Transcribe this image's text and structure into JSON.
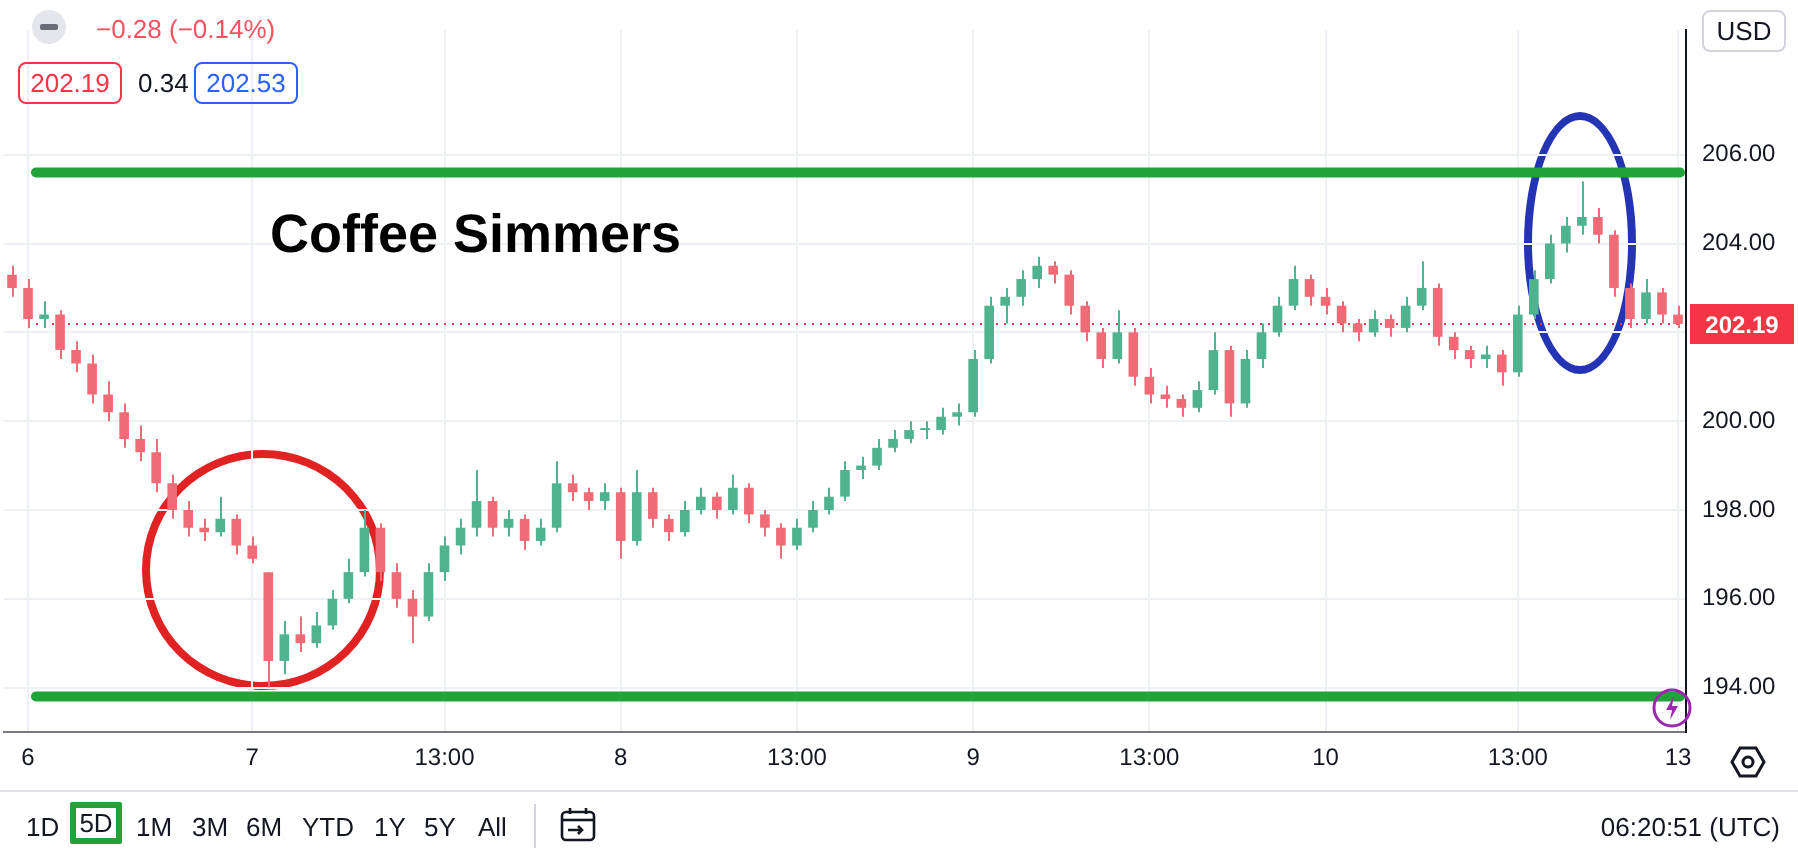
{
  "chart_data": {
    "type": "candlestick",
    "title": "Coffee Simmers",
    "categories": [
      null,
      "6",
      null,
      null,
      null,
      null,
      null,
      null,
      null,
      null,
      null,
      null,
      null,
      null,
      null,
      "7",
      null,
      null,
      null,
      null,
      null,
      null,
      null,
      null,
      null,
      null,
      null,
      "13:00",
      null,
      null,
      null,
      null,
      null,
      null,
      null,
      null,
      null,
      null,
      "8",
      null,
      null,
      null,
      null,
      null,
      null,
      null,
      null,
      null,
      null,
      "13:00",
      null,
      null,
      null,
      null,
      null,
      null,
      null,
      null,
      null,
      null,
      "9",
      null,
      null,
      null,
      null,
      null,
      null,
      null,
      null,
      null,
      null,
      "13:00",
      null,
      null,
      null,
      null,
      null,
      null,
      null,
      null,
      null,
      null,
      "10",
      null,
      null,
      null,
      null,
      null,
      null,
      null,
      null,
      null,
      null,
      null,
      "13:00",
      null,
      null,
      null,
      null,
      null,
      null,
      null,
      null,
      null,
      "13"
    ],
    "ohlc": [
      [
        203.3,
        203.5,
        202.8,
        203.0
      ],
      [
        203.0,
        203.2,
        202.1,
        202.3
      ],
      [
        202.3,
        202.7,
        202.1,
        202.4
      ],
      [
        202.4,
        202.5,
        201.4,
        201.6
      ],
      [
        201.6,
        201.8,
        201.1,
        201.3
      ],
      [
        201.3,
        201.5,
        200.4,
        200.6
      ],
      [
        200.6,
        200.9,
        200.0,
        200.2
      ],
      [
        200.2,
        200.4,
        199.4,
        199.6
      ],
      [
        199.6,
        199.9,
        199.1,
        199.3
      ],
      [
        199.3,
        199.6,
        198.4,
        198.6
      ],
      [
        198.6,
        198.8,
        197.8,
        198.0
      ],
      [
        198.0,
        198.2,
        197.4,
        197.6
      ],
      [
        197.6,
        197.8,
        197.3,
        197.5
      ],
      [
        197.5,
        198.3,
        197.4,
        197.8
      ],
      [
        197.8,
        197.9,
        197.0,
        197.2
      ],
      [
        197.2,
        197.4,
        196.8,
        196.9
      ],
      [
        196.6,
        196.6,
        194.0,
        194.6
      ],
      [
        194.6,
        195.5,
        194.3,
        195.2
      ],
      [
        195.2,
        195.6,
        194.8,
        195.0
      ],
      [
        195.0,
        195.7,
        194.9,
        195.4
      ],
      [
        195.4,
        196.2,
        195.3,
        196.0
      ],
      [
        196.0,
        196.9,
        195.9,
        196.6
      ],
      [
        196.6,
        198.0,
        196.5,
        197.6
      ],
      [
        197.6,
        197.7,
        196.4,
        196.6
      ],
      [
        196.6,
        196.8,
        195.8,
        196.0
      ],
      [
        196.0,
        196.2,
        195.0,
        195.6
      ],
      [
        195.6,
        196.8,
        195.5,
        196.6
      ],
      [
        196.6,
        197.4,
        196.4,
        197.2
      ],
      [
        197.2,
        197.8,
        197.0,
        197.6
      ],
      [
        197.6,
        198.9,
        197.4,
        198.2
      ],
      [
        198.2,
        198.3,
        197.4,
        197.6
      ],
      [
        197.6,
        198.0,
        197.4,
        197.8
      ],
      [
        197.8,
        197.9,
        197.1,
        197.3
      ],
      [
        197.3,
        197.8,
        197.2,
        197.6
      ],
      [
        197.6,
        199.1,
        197.5,
        198.6
      ],
      [
        198.6,
        198.8,
        198.2,
        198.4
      ],
      [
        198.4,
        198.5,
        198.0,
        198.2
      ],
      [
        198.2,
        198.6,
        198.0,
        198.4
      ],
      [
        198.4,
        198.5,
        196.9,
        197.3
      ],
      [
        197.3,
        198.9,
        197.2,
        198.4
      ],
      [
        198.4,
        198.5,
        197.6,
        197.8
      ],
      [
        197.8,
        197.9,
        197.3,
        197.5
      ],
      [
        197.5,
        198.2,
        197.4,
        198.0
      ],
      [
        198.0,
        198.5,
        197.9,
        198.3
      ],
      [
        198.3,
        198.4,
        197.8,
        198.0
      ],
      [
        198.0,
        198.8,
        197.9,
        198.5
      ],
      [
        198.5,
        198.6,
        197.7,
        197.9
      ],
      [
        197.9,
        198.0,
        197.4,
        197.6
      ],
      [
        197.6,
        197.7,
        196.9,
        197.2
      ],
      [
        197.2,
        197.8,
        197.1,
        197.6
      ],
      [
        197.6,
        198.2,
        197.5,
        198.0
      ],
      [
        198.0,
        198.5,
        197.9,
        198.3
      ],
      [
        198.3,
        199.1,
        198.2,
        198.9
      ],
      [
        198.9,
        199.2,
        198.7,
        199.0
      ],
      [
        199.0,
        199.6,
        198.9,
        199.4
      ],
      [
        199.4,
        199.8,
        199.3,
        199.6
      ],
      [
        199.6,
        200.0,
        199.5,
        199.8
      ],
      [
        199.8,
        200.0,
        199.6,
        199.8
      ],
      [
        199.8,
        200.3,
        199.7,
        200.1
      ],
      [
        200.1,
        200.4,
        199.9,
        200.2
      ],
      [
        200.2,
        201.6,
        200.1,
        201.4
      ],
      [
        201.4,
        202.8,
        201.3,
        202.6
      ],
      [
        202.6,
        203.0,
        202.2,
        202.8
      ],
      [
        202.8,
        203.4,
        202.6,
        203.2
      ],
      [
        203.2,
        203.7,
        203.0,
        203.5
      ],
      [
        203.5,
        203.6,
        203.1,
        203.3
      ],
      [
        203.3,
        203.4,
        202.4,
        202.6
      ],
      [
        202.6,
        202.7,
        201.8,
        202.0
      ],
      [
        202.0,
        202.1,
        201.2,
        201.4
      ],
      [
        201.4,
        202.5,
        201.3,
        202.0
      ],
      [
        202.0,
        202.1,
        200.8,
        201.0
      ],
      [
        201.0,
        201.2,
        200.4,
        200.6
      ],
      [
        200.6,
        200.8,
        200.3,
        200.5
      ],
      [
        200.5,
        200.6,
        200.1,
        200.3
      ],
      [
        200.3,
        200.9,
        200.2,
        200.7
      ],
      [
        200.7,
        202.0,
        200.6,
        201.6
      ],
      [
        201.6,
        201.7,
        200.1,
        200.4
      ],
      [
        200.4,
        201.6,
        200.3,
        201.4
      ],
      [
        201.4,
        202.2,
        201.2,
        202.0
      ],
      [
        202.0,
        202.8,
        201.9,
        202.6
      ],
      [
        202.6,
        203.5,
        202.5,
        203.2
      ],
      [
        203.2,
        203.3,
        202.6,
        202.8
      ],
      [
        202.8,
        203.0,
        202.4,
        202.6
      ],
      [
        202.6,
        202.7,
        202.0,
        202.2
      ],
      [
        202.2,
        202.3,
        201.8,
        202.0
      ],
      [
        202.0,
        202.5,
        201.9,
        202.3
      ],
      [
        202.3,
        202.4,
        201.9,
        202.1
      ],
      [
        202.1,
        202.8,
        202.0,
        202.6
      ],
      [
        202.6,
        203.6,
        202.5,
        203.0
      ],
      [
        203.0,
        203.1,
        201.7,
        201.9
      ],
      [
        201.9,
        202.0,
        201.4,
        201.6
      ],
      [
        201.6,
        201.7,
        201.2,
        201.4
      ],
      [
        201.4,
        201.7,
        201.2,
        201.5
      ],
      [
        201.5,
        201.6,
        200.8,
        201.1
      ],
      [
        201.1,
        202.6,
        201.0,
        202.4
      ],
      [
        202.4,
        203.4,
        202.3,
        203.2
      ],
      [
        203.2,
        204.2,
        203.1,
        204.0
      ],
      [
        204.0,
        204.6,
        203.8,
        204.4
      ],
      [
        204.4,
        205.4,
        204.2,
        204.6
      ],
      [
        204.6,
        204.8,
        204.0,
        204.2
      ],
      [
        204.2,
        204.3,
        202.8,
        203.0
      ],
      [
        203.0,
        203.1,
        202.1,
        202.3
      ],
      [
        202.3,
        203.2,
        202.2,
        202.9
      ],
      [
        202.9,
        203.0,
        202.2,
        202.4
      ],
      [
        202.4,
        202.6,
        202.1,
        202.19
      ]
    ],
    "ylim": [
      193.0,
      208.8
    ],
    "yticks": [
      {
        "value": 194,
        "label": "194.00"
      },
      {
        "value": 196,
        "label": "196.00"
      },
      {
        "value": 198,
        "label": "198.00"
      },
      {
        "value": 200,
        "label": "200.00"
      },
      {
        "value": 202,
        "label": null
      },
      {
        "value": 204,
        "label": "204.00"
      },
      {
        "value": 206,
        "label": "206.00"
      }
    ],
    "grid": true,
    "ref_lines": [
      {
        "axis": "y",
        "value": 205.6,
        "color": "#22a33a",
        "line_style": "solid"
      },
      {
        "axis": "y",
        "value": 193.8,
        "color": "#22a33a",
        "line_style": "solid"
      },
      {
        "axis": "y",
        "value": 202.19,
        "label": "202.19",
        "color": "#f23645",
        "line_style": "dotted"
      }
    ],
    "annotations": [
      "−0.28 (−0.14%)",
      "202.19",
      "0.34",
      "202.53",
      "USD",
      "1D",
      "5D",
      "1M",
      "3M",
      "6M",
      "YTD",
      "1Y",
      "5Y",
      "All",
      "06:20:51 (UTC)"
    ]
  }
}
